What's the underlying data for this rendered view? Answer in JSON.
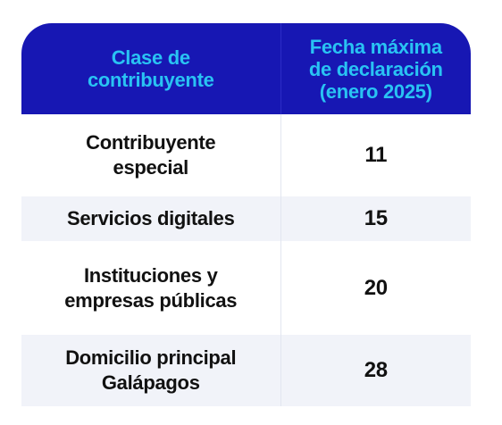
{
  "table": {
    "headers": [
      "Clase de contribuyente",
      "Fecha máxima de declaración (enero 2025)"
    ],
    "header_lines": {
      "col1": [
        "Clase de",
        "contribuyente"
      ],
      "col2": [
        "Fecha máxima",
        "de declaración",
        "(enero 2025)"
      ]
    },
    "rows": [
      {
        "clase_lines": [
          "Contribuyente",
          "especial"
        ],
        "fecha": "11"
      },
      {
        "clase_lines": [
          "Servicios digitales"
        ],
        "fecha": "15"
      },
      {
        "clase_lines": [
          "Instituciones y",
          "empresas públicas"
        ],
        "fecha": "20"
      },
      {
        "clase_lines": [
          "Domicilio principal",
          "Galápagos"
        ],
        "fecha": "28"
      }
    ]
  },
  "colors": {
    "header_bg": "#1717b3",
    "header_text": "#29c3f3",
    "row_alt_bg": "#f1f3f9",
    "body_text": "#111111"
  }
}
